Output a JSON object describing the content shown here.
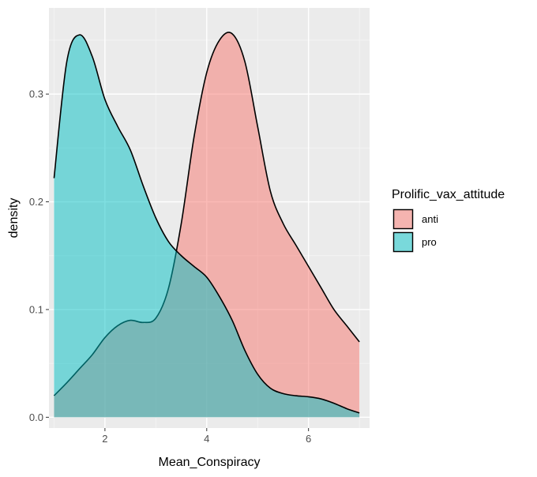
{
  "chart_data": {
    "type": "area",
    "title": "",
    "xlabel": "Mean_Conspiracy",
    "ylabel": "density",
    "xlim": [
      0.9,
      7.2
    ],
    "ylim": [
      -0.01,
      0.38
    ],
    "x_ticks": [
      2,
      4,
      6
    ],
    "y_ticks": [
      0.0,
      0.1,
      0.2,
      0.3
    ],
    "y_tick_labels": [
      "0.0",
      "0.1",
      "0.2",
      "0.3"
    ],
    "grid": true,
    "legend_position": "right",
    "legend_title": "Prolific_vax_attitude",
    "series": [
      {
        "name": "anti",
        "color": "#F8766D",
        "x": [
          1.0,
          1.25,
          1.5,
          1.75,
          2.0,
          2.25,
          2.5,
          2.75,
          3.0,
          3.25,
          3.5,
          3.75,
          4.0,
          4.25,
          4.5,
          4.75,
          5.0,
          5.25,
          5.5,
          5.75,
          6.0,
          6.25,
          6.5,
          6.75,
          7.0
        ],
        "y": [
          0.02,
          0.032,
          0.045,
          0.058,
          0.074,
          0.085,
          0.09,
          0.088,
          0.092,
          0.12,
          0.18,
          0.26,
          0.32,
          0.35,
          0.356,
          0.33,
          0.27,
          0.21,
          0.18,
          0.16,
          0.14,
          0.12,
          0.1,
          0.085,
          0.07
        ]
      },
      {
        "name": "pro",
        "color": "#00BFC4",
        "x": [
          1.0,
          1.25,
          1.5,
          1.75,
          2.0,
          2.25,
          2.5,
          2.75,
          3.0,
          3.25,
          3.5,
          3.75,
          4.0,
          4.25,
          4.5,
          4.75,
          5.0,
          5.25,
          5.5,
          5.75,
          6.0,
          6.25,
          6.5,
          6.75,
          7.0
        ],
        "y": [
          0.222,
          0.33,
          0.355,
          0.335,
          0.295,
          0.27,
          0.248,
          0.215,
          0.185,
          0.163,
          0.15,
          0.14,
          0.13,
          0.112,
          0.09,
          0.062,
          0.04,
          0.027,
          0.022,
          0.02,
          0.019,
          0.017,
          0.013,
          0.008,
          0.004
        ]
      }
    ]
  }
}
